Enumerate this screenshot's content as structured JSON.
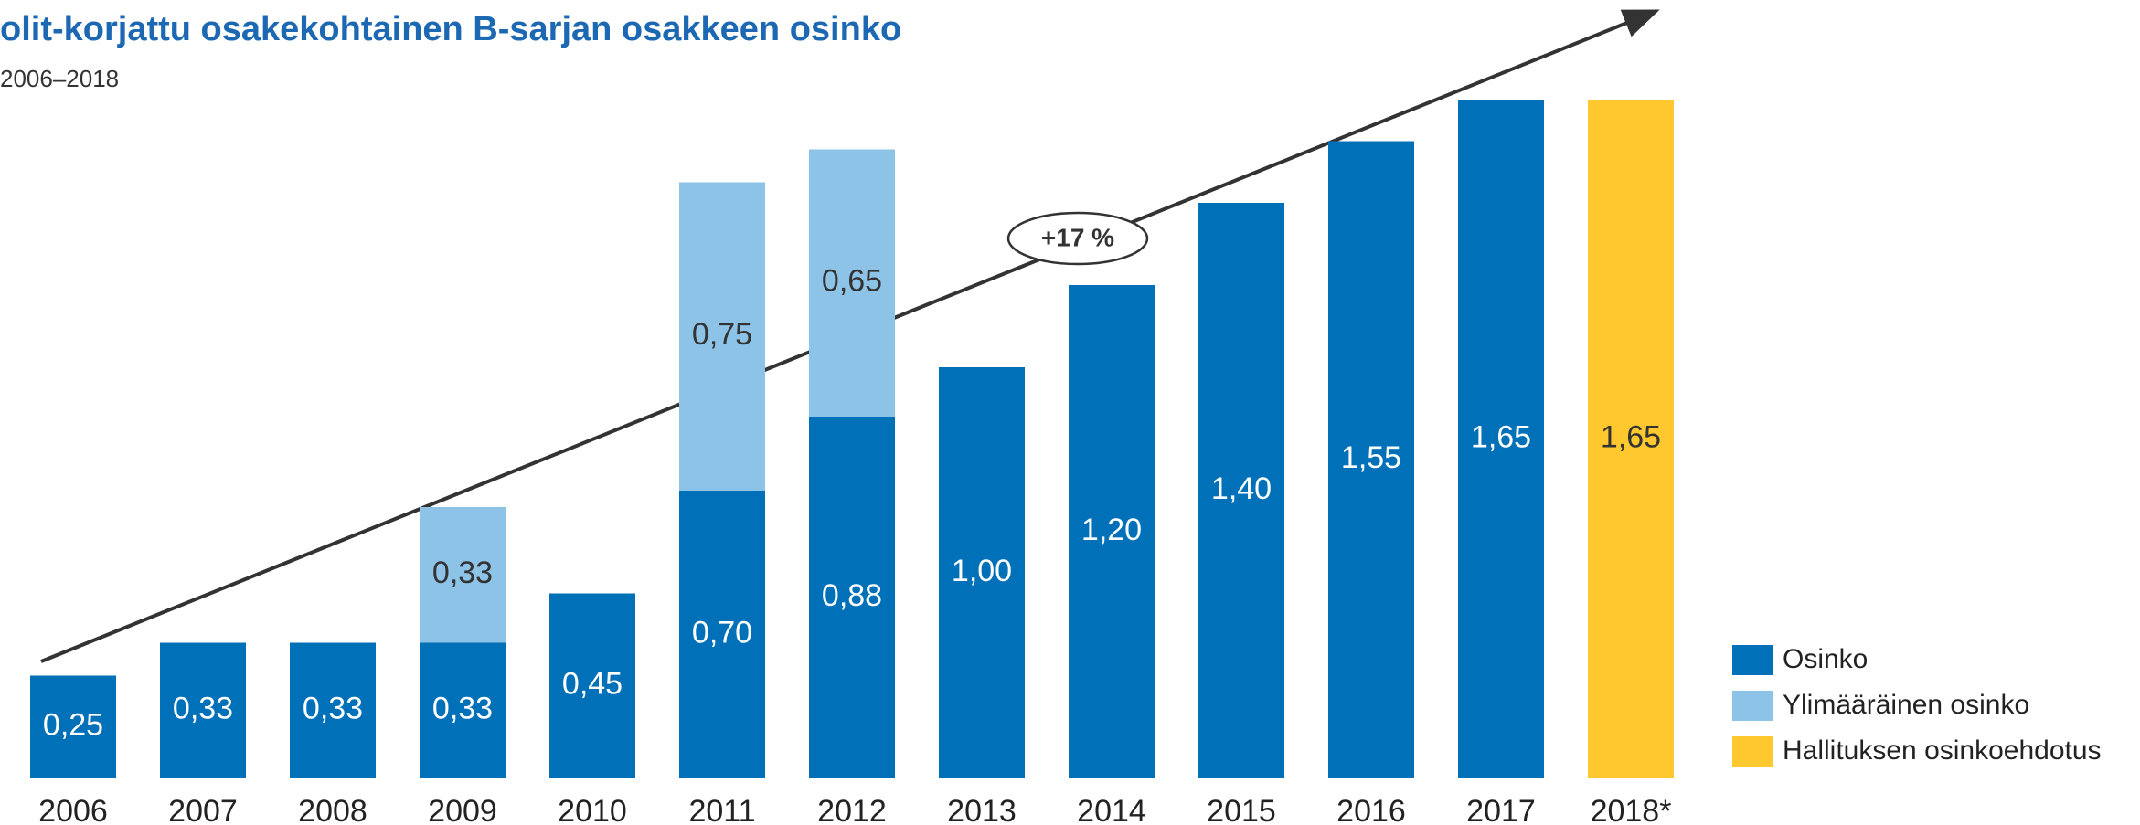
{
  "chart_data": {
    "type": "bar",
    "stacked": true,
    "title": "olit-korjattu osakekohtainen B-sarjan osakkeen osinko",
    "subtitle": "2006–2018",
    "annotation": "+17 %",
    "categories": [
      "2006",
      "2007",
      "2008",
      "2009",
      "2010",
      "2011",
      "2012",
      "2013",
      "2014",
      "2015",
      "2016",
      "2017",
      "2018*"
    ],
    "series": [
      {
        "name": "Osinko",
        "color": "#0070b8",
        "values": [
          0.25,
          0.33,
          0.33,
          0.33,
          0.45,
          0.7,
          0.88,
          1.0,
          1.2,
          1.4,
          1.55,
          1.65,
          null
        ],
        "value_labels": [
          "0,25",
          "0,33",
          "0,33",
          "0,33",
          "0,45",
          "0,70",
          "0,88",
          "1,00",
          "1,20",
          "1,40",
          "1,55",
          "1,65",
          null
        ]
      },
      {
        "name": "Ylimääräinen osinko",
        "color": "#8cc3e7",
        "values": [
          null,
          null,
          null,
          0.33,
          null,
          0.75,
          0.65,
          null,
          null,
          null,
          null,
          null,
          null
        ],
        "value_labels": [
          null,
          null,
          null,
          "0,33",
          null,
          "0,75",
          "0,65",
          null,
          null,
          null,
          null,
          null,
          null
        ]
      },
      {
        "name": "Hallituksen osinkoehdotus",
        "color": "#fec82e",
        "values": [
          null,
          null,
          null,
          null,
          null,
          null,
          null,
          null,
          null,
          null,
          null,
          null,
          1.65
        ],
        "value_labels": [
          null,
          null,
          null,
          null,
          null,
          null,
          null,
          null,
          null,
          null,
          null,
          null,
          "1,65"
        ]
      }
    ]
  }
}
